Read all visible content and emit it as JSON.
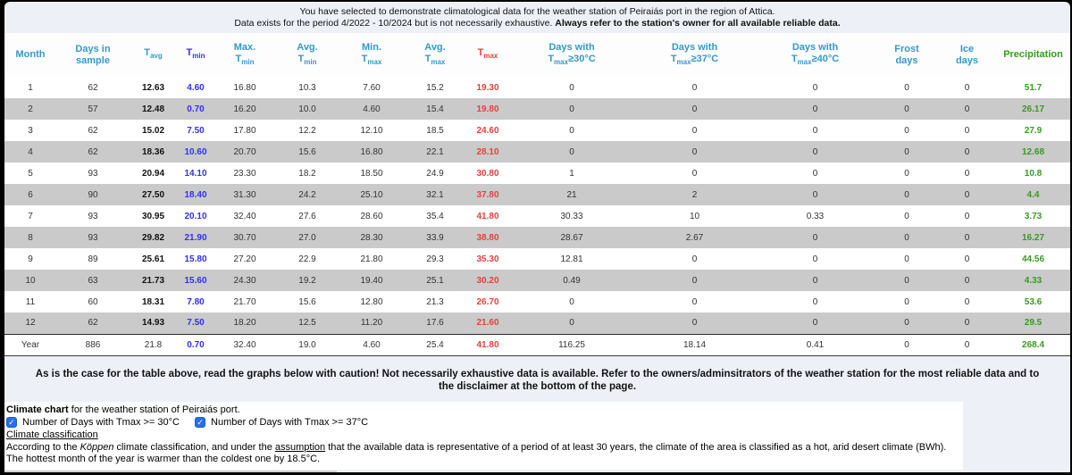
{
  "banner": {
    "line1": "You have selected to demonstrate climatological data for the weather station of Peiraiás port in the region of Attica.",
    "line2_normal": "Data exists for the period 4/2022 - 10/2024 but is not necessarily exhaustive. ",
    "line2_bold": "Always refer to the station's owner for all available reliable data."
  },
  "table": {
    "headers": {
      "month": "Month",
      "days_line1": "Days in",
      "days_line2": "sample",
      "t": "T",
      "tavg_sub": "avg",
      "tmin_sub": "min",
      "tmax_sub": "max",
      "max_prefix": "Max.",
      "avg_prefix": "Avg.",
      "min_prefix": "Min.",
      "days_with": "Days with",
      "ge30": "≥30°C",
      "ge37": "≥37°C",
      "ge40": "≥40°C",
      "frost_line1": "Frost",
      "frost_line2": "days",
      "ice_line1": "Ice",
      "ice_line2": "days",
      "precipitation": "Precipitation"
    },
    "rows": [
      [
        "1",
        "62",
        "12.63",
        "4.60",
        "16.80",
        "10.3",
        "7.60",
        "15.2",
        "19.30",
        "0",
        "0",
        "0",
        "0",
        "0",
        "51.7"
      ],
      [
        "2",
        "57",
        "12.48",
        "0.70",
        "16.20",
        "10.0",
        "4.60",
        "15.4",
        "19.80",
        "0",
        "0",
        "0",
        "0",
        "0",
        "26.17"
      ],
      [
        "3",
        "62",
        "15.02",
        "7.50",
        "17.80",
        "12.2",
        "12.10",
        "18.5",
        "24.60",
        "0",
        "0",
        "0",
        "0",
        "0",
        "27.9"
      ],
      [
        "4",
        "62",
        "18.36",
        "10.60",
        "20.70",
        "15.6",
        "16.80",
        "22.1",
        "28.10",
        "0",
        "0",
        "0",
        "0",
        "0",
        "12.68"
      ],
      [
        "5",
        "93",
        "20.94",
        "14.10",
        "23.30",
        "18.2",
        "18.50",
        "24.9",
        "30.80",
        "1",
        "0",
        "0",
        "0",
        "0",
        "10.8"
      ],
      [
        "6",
        "90",
        "27.50",
        "18.40",
        "31.30",
        "24.2",
        "25.10",
        "32.1",
        "37.80",
        "21",
        "2",
        "0",
        "0",
        "0",
        "4.4"
      ],
      [
        "7",
        "93",
        "30.95",
        "20.10",
        "32.40",
        "27.6",
        "28.60",
        "35.4",
        "41.80",
        "30.33",
        "10",
        "0.33",
        "0",
        "0",
        "3.73"
      ],
      [
        "8",
        "93",
        "29.82",
        "21.90",
        "30.70",
        "27.0",
        "28.30",
        "33.9",
        "38.80",
        "28.67",
        "2.67",
        "0",
        "0",
        "0",
        "16.27"
      ],
      [
        "9",
        "89",
        "25.61",
        "15.80",
        "27.20",
        "22.9",
        "21.80",
        "29.3",
        "35.30",
        "12.81",
        "0",
        "0",
        "0",
        "0",
        "44.56"
      ],
      [
        "10",
        "63",
        "21.73",
        "15.60",
        "24.30",
        "19.2",
        "19.40",
        "25.1",
        "30.20",
        "0.49",
        "0",
        "0",
        "0",
        "0",
        "4.33"
      ],
      [
        "11",
        "60",
        "18.31",
        "7.80",
        "21.70",
        "15.6",
        "12.80",
        "21.3",
        "26.70",
        "0",
        "0",
        "0",
        "0",
        "0",
        "53.6"
      ],
      [
        "12",
        "62",
        "14.93",
        "7.50",
        "18.20",
        "12.5",
        "11.20",
        "17.6",
        "21.60",
        "0",
        "0",
        "0",
        "0",
        "0",
        "29.5"
      ],
      [
        "Year",
        "886",
        "21.8",
        "0.70",
        "32.40",
        "19.0",
        "4.60",
        "25.4",
        "41.80",
        "116.25",
        "18.14",
        "0.41",
        "0",
        "0",
        "268.4"
      ]
    ]
  },
  "caution": "As is the case for the table above, read the graphs below with caution! Not necessarily exhaustive data is available. Refer to the owners/adminsitrators of the weather station for the most reliable data and to the disclaimer at the bottom of the page.",
  "chart_section": {
    "lead_bold": "Climate chart",
    "lead_rest": " for the weather station of Peiraiás port.",
    "checkbox1": "Number of Days with Tmax >= 30°C",
    "checkbox2": "Number of Days with Tmax >= 37°C",
    "checkbox1_checked": true,
    "checkbox2_checked": true
  },
  "classification": {
    "link": "Climate classification",
    "p1_a": "According to the ",
    "p1_koppen": "Köppen",
    "p1_b": " climate classification, and under the ",
    "p1_assumption": "assumption",
    "p1_c": " that the available data is representative of a period of at least 30 years, the climate of the area is classified as a hot, arid desert climate (BWh).",
    "p2": "The hottest month of the year is warmer than the coldest one by 18.5°C."
  },
  "colors": {
    "header_blue": "#3399cc",
    "tmin_blue": "#2f2fff",
    "tmax_red": "#e8403a",
    "precip_green": "#379b1f",
    "row_alt_grey": "#cacaca",
    "page_bg": "#edf1f7",
    "checkbox_blue": "#2670ee"
  }
}
